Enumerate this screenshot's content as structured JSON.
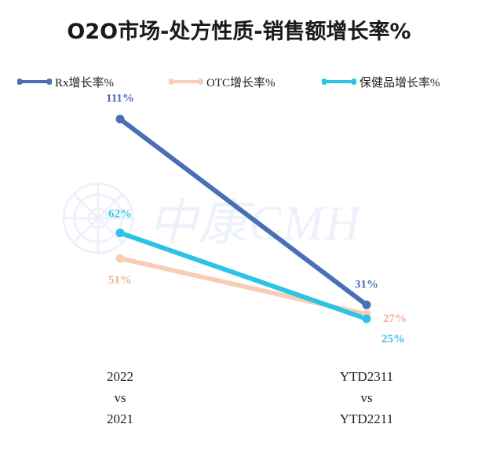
{
  "title": "O2O市场-处方性质-销售额增长率%",
  "watermark_text": "中康CMH",
  "colors": {
    "rx": "#4a6fb7",
    "otc": "#f7cdb5",
    "health": "#2bc4e6",
    "rx_label": "#4a6fb7",
    "otc_label": "#f0b38f",
    "health_label": "#39c5e6"
  },
  "chart_data": {
    "type": "line",
    "categories": [
      [
        "2022",
        "vs",
        "2021"
      ],
      [
        "YTD2311",
        "vs",
        "YTD2211"
      ]
    ],
    "series": [
      {
        "name": "Rx增长率%",
        "values": [
          111,
          31
        ],
        "labels": [
          "111%",
          "31%"
        ],
        "color_key": "rx"
      },
      {
        "name": "OTC增长率%",
        "values": [
          51,
          27
        ],
        "labels": [
          "51%",
          "27%"
        ],
        "color_key": "otc"
      },
      {
        "name": "保健品增长率%",
        "values": [
          62,
          25
        ],
        "labels": [
          "62%",
          "25%"
        ],
        "color_key": "health"
      }
    ],
    "ylim": [
      0,
      120
    ],
    "legend_position": "top",
    "grid": false
  }
}
